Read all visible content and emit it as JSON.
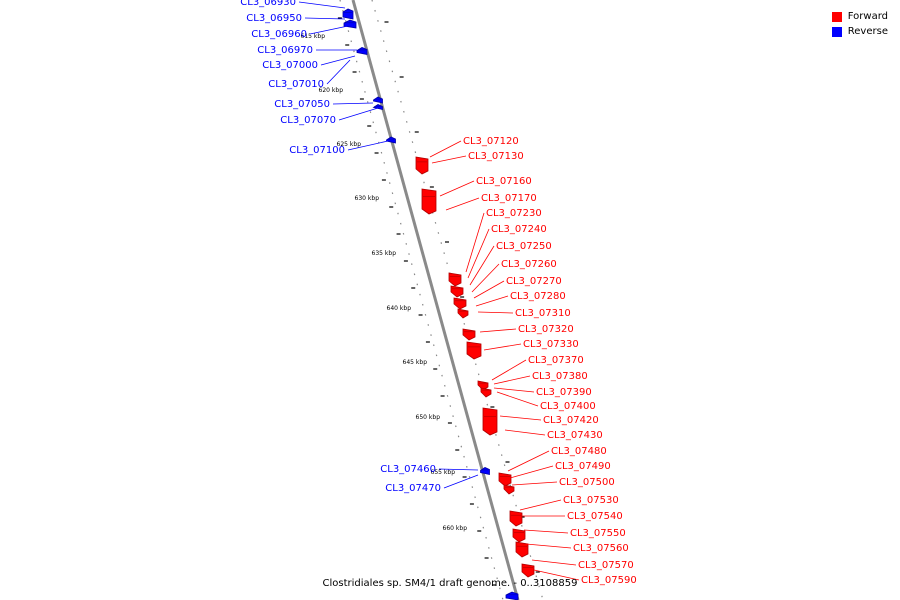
{
  "caption": "Clostridiales sp. SM4/1 draft genome. - 0..3108859",
  "legend": {
    "forward_label": "Forward",
    "reverse_label": "Reverse",
    "forward_color": "#ff0000",
    "reverse_color": "#0000ff"
  },
  "scale_labels": [
    "615 kbp",
    "620 kbp",
    "625 kbp",
    "630 kbp",
    "635 kbp",
    "640 kbp",
    "645 kbp",
    "650 kbp",
    "655 kbp",
    "660 kbp"
  ],
  "reverse_genes": [
    "CL3_06930",
    "CL3_06950",
    "CL3_06960",
    "CL3_06970",
    "CL3_07000",
    "CL3_07010",
    "CL3_07050",
    "CL3_07070",
    "CL3_07100",
    "CL3_07460",
    "CL3_07470"
  ],
  "forward_genes": [
    "CL3_07120",
    "CL3_07130",
    "CL3_07160",
    "CL3_07170",
    "CL3_07230",
    "CL3_07240",
    "CL3_07250",
    "CL3_07260",
    "CL3_07270",
    "CL3_07280",
    "CL3_07310",
    "CL3_07320",
    "CL3_07330",
    "CL3_07370",
    "CL3_07380",
    "CL3_07390",
    "CL3_07400",
    "CL3_07420",
    "CL3_07430",
    "CL3_07480",
    "CL3_07490",
    "CL3_07500",
    "CL3_07530",
    "CL3_07540",
    "CL3_07550",
    "CL3_07560",
    "CL3_07570",
    "CL3_07590"
  ]
}
